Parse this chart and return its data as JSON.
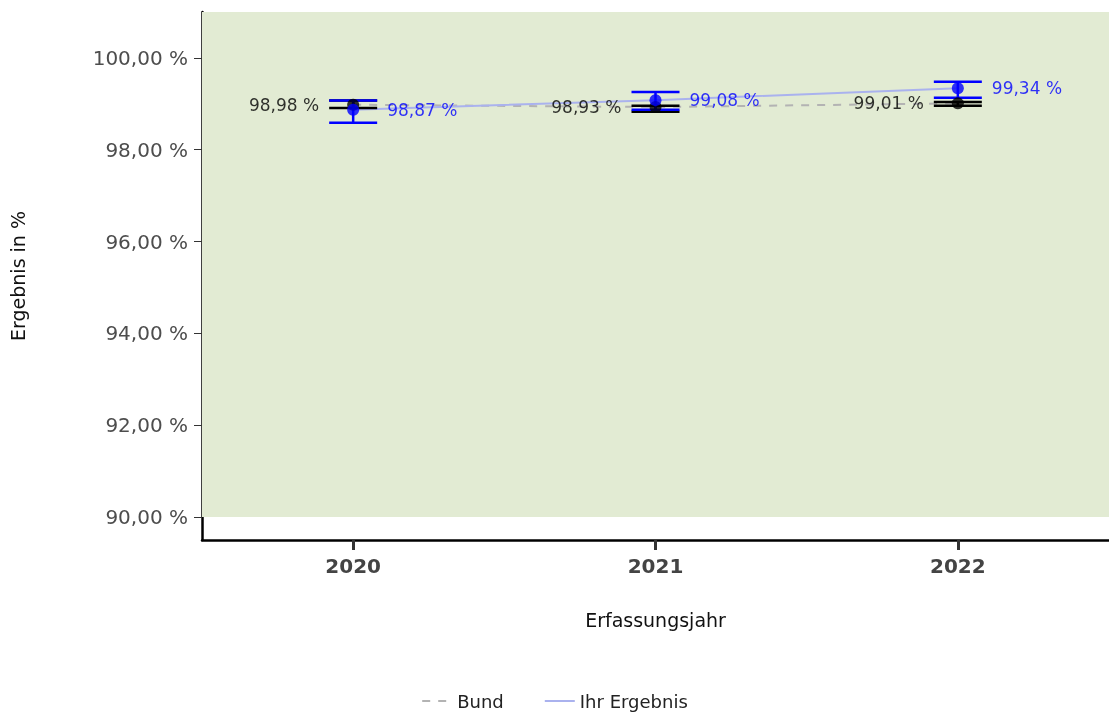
{
  "chart_data": {
    "type": "line",
    "xlabel": "Erfassungsjahr",
    "ylabel": "Ergebnis in %",
    "categories": [
      "2020",
      "2021",
      "2022"
    ],
    "ylim": [
      89.5,
      101
    ],
    "yticks": [
      {
        "value": 90,
        "label": "90,00 %"
      },
      {
        "value": 92,
        "label": "92,00 %"
      },
      {
        "value": 94,
        "label": "94,00 %"
      },
      {
        "value": 96,
        "label": "96,00 %"
      },
      {
        "value": 98,
        "label": "98,00 %"
      },
      {
        "value": 100,
        "label": "100,00 %"
      }
    ],
    "bands": [
      {
        "axis": "y",
        "from": 90,
        "to": 101,
        "color": "#e2ebd3"
      }
    ],
    "grid": false,
    "legend": "bottom",
    "series": [
      {
        "name": "Bund",
        "color": "#b3b3b3",
        "line_style": "dashed",
        "marker": "none",
        "values": [
          98.98,
          98.93,
          99.01
        ]
      },
      {
        "name": "Ihr Ergebnis",
        "color": "#aab2ee",
        "line_style": "solid",
        "marker": "none",
        "values": [
          98.87,
          99.08,
          99.34
        ]
      },
      {
        "type": "scatter",
        "color": "#000000",
        "marker": "circle",
        "values": [
          98.98,
          98.93,
          99.01
        ],
        "errors": [
          [
            98.91,
            99.07
          ],
          [
            98.83,
            98.96
          ],
          [
            98.96,
            99.04
          ]
        ],
        "value_labels": [
          "98,98 %",
          "98,93 %",
          "99,01 %"
        ]
      },
      {
        "type": "scatter",
        "color": "#0000ff",
        "marker": "circle",
        "values": [
          98.87,
          99.08,
          99.34
        ],
        "errors": [
          [
            98.59,
            99.07
          ],
          [
            98.87,
            99.26
          ],
          [
            99.13,
            99.48
          ]
        ],
        "value_labels": [
          "98,87 %",
          "99,08 %",
          "99,34 %"
        ]
      }
    ]
  }
}
